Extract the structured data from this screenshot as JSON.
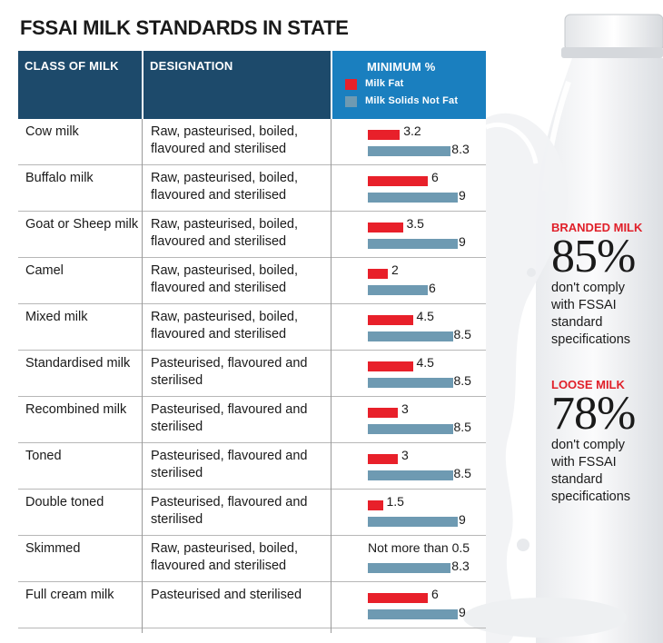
{
  "title": "FSSAI MILK STANDARDS IN STATE",
  "header": {
    "class_col": "CLASS OF MILK",
    "designation_col": "DESIGNATION",
    "minimum_col": "MINIMUM %"
  },
  "colors": {
    "fat": "#e8202a",
    "snf": "#6e9ab2",
    "header": "#1d4a6b",
    "accent": "#1a7fbf",
    "callout": "#e0202a"
  },
  "chart_data": {
    "type": "bar",
    "title": "MINIMUM %",
    "orientation": "horizontal",
    "categories": [
      "Cow milk",
      "Buffalo milk",
      "Goat or Sheep milk",
      "Camel",
      "Mixed milk",
      "Standardised milk",
      "Recombined milk",
      "Toned",
      "Double toned",
      "Skimmed",
      "Full cream milk"
    ],
    "series": [
      {
        "name": "Milk Fat",
        "values": [
          3.2,
          6,
          3.5,
          2,
          4.5,
          4.5,
          3,
          3,
          1.5,
          null,
          6
        ],
        "labels": [
          "3.2",
          "6",
          "3.5",
          "2",
          "4.5",
          "4.5",
          "3",
          "3",
          "1.5",
          "",
          "6"
        ]
      },
      {
        "name": "Milk Solids Not Fat",
        "values": [
          8.3,
          9,
          9,
          6,
          8.5,
          8.5,
          8.5,
          8.5,
          9,
          8.3,
          9
        ],
        "labels": [
          "8.3",
          "9",
          "9",
          "6",
          "8.5",
          "8.5",
          "8.5",
          "8.5",
          "9",
          "8.3",
          "9"
        ]
      }
    ],
    "annotations": [
      {
        "row": "Skimmed",
        "text": "Not more than 0.5"
      }
    ]
  },
  "rows": [
    {
      "class": "Cow milk",
      "designation": "Raw, pasteurised, boiled, flavoured and sterilised"
    },
    {
      "class": "Buffalo milk",
      "designation": "Raw, pasteurised, boiled, flavoured and sterilised"
    },
    {
      "class": "Goat or Sheep milk",
      "designation": "Raw, pasteurised, boiled, flavoured and sterilised"
    },
    {
      "class": "Camel",
      "designation": "Raw, pasteurised, boiled, flavoured and sterilised"
    },
    {
      "class": "Mixed milk",
      "designation": "Raw, pasteurised, boiled, flavoured and sterilised"
    },
    {
      "class": "Standardised milk",
      "designation": "Pasteurised, flavoured and sterilised"
    },
    {
      "class": "Recombined milk",
      "designation": "Pasteurised, flavoured and sterilised"
    },
    {
      "class": "Toned",
      "designation": "Pasteurised, flavoured and sterilised"
    },
    {
      "class": "Double toned",
      "designation": "Pasteurised, flavoured and sterilised"
    },
    {
      "class": "Skimmed",
      "designation": "Raw, pasteurised, boiled, flavoured and sterilised"
    },
    {
      "class": "Full cream milk",
      "designation": "Pasteurised and sterilised"
    }
  ],
  "callouts": [
    {
      "head": "BRANDED MILK",
      "pct": "85%",
      "text": "don't comply with FSSAI standard specifications"
    },
    {
      "head": "LOOSE MILK",
      "pct": "78%",
      "text": "don't comply with FSSAI standard specifications"
    }
  ]
}
